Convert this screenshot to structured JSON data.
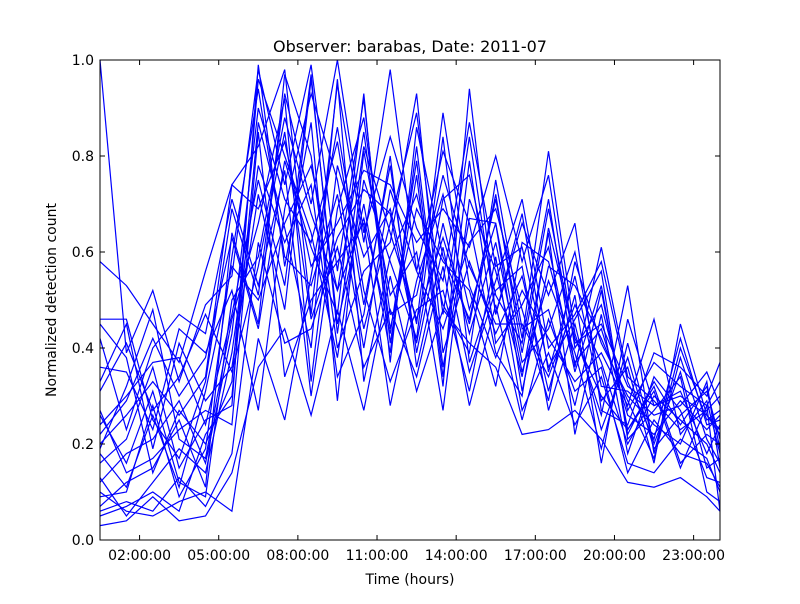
{
  "chart_data": {
    "type": "line",
    "title": "Observer: barabas, Date: 2011-07",
    "xlabel": "Time (hours)",
    "ylabel": "Normalized detection count",
    "xlim": [
      0.5,
      24
    ],
    "ylim": [
      0,
      1
    ],
    "x_ticks": [
      2,
      5,
      8,
      11,
      14,
      17,
      20,
      23
    ],
    "x_tick_labels": [
      "02:00:00",
      "05:00:00",
      "08:00:00",
      "11:00:00",
      "14:00:00",
      "17:00:00",
      "20:00:00",
      "23:00:00"
    ],
    "y_ticks": [
      0,
      0.2,
      0.4,
      0.6,
      0.8,
      1.0
    ],
    "y_tick_labels": [
      "0.0",
      "0.2",
      "0.4",
      "0.6",
      "0.8",
      "1.0"
    ],
    "grid": false,
    "legend": "none",
    "line_color": "#0000ff",
    "x": [
      0.5,
      1.5,
      2.5,
      3.5,
      4.5,
      5.5,
      6.5,
      7.5,
      8.5,
      9.5,
      10.5,
      11.5,
      12.5,
      13.5,
      14.5,
      15.5,
      16.5,
      17.5,
      18.5,
      19.5,
      20.5,
      21.5,
      22.5,
      23.5,
      24
    ],
    "series": [
      {
        "values": [
          1.0,
          0.39,
          0.52,
          0.33,
          0.49,
          0.55,
          0.98,
          0.74,
          0.99,
          0.56,
          0.92,
          0.41,
          0.76,
          0.32,
          0.94,
          0.47,
          0.68,
          0.35,
          0.55,
          0.29,
          0.36,
          0.16,
          0.45,
          0.26,
          0.22
        ]
      },
      {
        "values": [
          0.58,
          0.53,
          0.45,
          0.37,
          0.56,
          0.74,
          0.82,
          0.98,
          0.47,
          0.95,
          0.62,
          0.98,
          0.56,
          0.81,
          0.66,
          0.39,
          0.3,
          0.65,
          0.42,
          0.3,
          0.23,
          0.31,
          0.15,
          0.28,
          0.06
        ]
      },
      {
        "values": [
          0.46,
          0.46,
          0.25,
          0.17,
          0.33,
          0.69,
          0.51,
          0.93,
          0.7,
          1.0,
          0.64,
          0.84,
          0.65,
          0.54,
          0.87,
          0.57,
          0.61,
          0.36,
          0.46,
          0.56,
          0.21,
          0.27,
          0.34,
          0.1,
          0.08
        ]
      },
      {
        "values": [
          0.31,
          0.41,
          0.27,
          0.34,
          0.47,
          0.35,
          0.57,
          0.85,
          0.46,
          0.63,
          0.73,
          0.68,
          0.41,
          0.71,
          0.76,
          0.51,
          0.41,
          0.71,
          0.36,
          0.61,
          0.34,
          0.29,
          0.23,
          0.27,
          0.3
        ]
      },
      {
        "values": [
          0.22,
          0.29,
          0.42,
          0.3,
          0.38,
          0.63,
          0.44,
          0.79,
          0.61,
          0.47,
          0.93,
          0.37,
          0.86,
          0.59,
          0.46,
          0.71,
          0.42,
          0.81,
          0.43,
          0.26,
          0.53,
          0.18,
          0.4,
          0.25,
          0.27
        ]
      },
      {
        "values": [
          0.19,
          0.32,
          0.48,
          0.21,
          0.17,
          0.46,
          0.66,
          0.92,
          0.33,
          0.78,
          0.59,
          0.69,
          0.45,
          0.89,
          0.53,
          0.38,
          0.52,
          0.42,
          0.33,
          0.39,
          0.28,
          0.46,
          0.22,
          0.29,
          0.18
        ]
      },
      {
        "values": [
          0.16,
          0.21,
          0.36,
          0.15,
          0.25,
          0.28,
          0.99,
          0.57,
          0.87,
          0.29,
          0.81,
          0.51,
          0.6,
          0.27,
          0.71,
          0.56,
          0.34,
          0.64,
          0.22,
          0.47,
          0.18,
          0.34,
          0.27,
          0.13,
          0.12
        ]
      },
      {
        "values": [
          0.12,
          0.18,
          0.21,
          0.29,
          0.16,
          0.43,
          0.9,
          0.71,
          0.62,
          0.83,
          0.49,
          0.78,
          0.39,
          0.66,
          0.43,
          0.62,
          0.35,
          0.54,
          0.39,
          0.19,
          0.41,
          0.2,
          0.35,
          0.15,
          0.17
        ]
      },
      {
        "values": [
          0.09,
          0.1,
          0.28,
          0.09,
          0.19,
          0.59,
          0.94,
          0.59,
          0.53,
          0.72,
          0.4,
          0.73,
          0.56,
          0.44,
          0.62,
          0.69,
          0.48,
          0.29,
          0.58,
          0.41,
          0.3,
          0.24,
          0.2,
          0.33,
          0.15
        ]
      },
      {
        "values": [
          0.07,
          0.12,
          0.15,
          0.25,
          0.11,
          0.64,
          0.45,
          0.97,
          0.8,
          0.4,
          0.56,
          0.62,
          0.93,
          0.39,
          0.58,
          0.43,
          0.55,
          0.31,
          0.51,
          0.16,
          0.46,
          0.28,
          0.31,
          0.18,
          0.24
        ]
      },
      {
        "values": [
          0.05,
          0.07,
          0.1,
          0.06,
          0.22,
          0.3,
          0.87,
          0.65,
          0.4,
          0.96,
          0.33,
          0.59,
          0.72,
          0.49,
          0.39,
          0.75,
          0.44,
          0.48,
          0.28,
          0.52,
          0.23,
          0.32,
          0.16,
          0.22,
          0.2
        ]
      },
      {
        "values": [
          0.26,
          0.16,
          0.31,
          0.12,
          0.09,
          0.5,
          0.59,
          0.88,
          0.68,
          0.52,
          0.85,
          0.44,
          0.69,
          0.58,
          0.52,
          0.32,
          0.62,
          0.58,
          0.37,
          0.44,
          0.26,
          0.22,
          0.29,
          0.23,
          0.26
        ]
      },
      {
        "values": [
          0.33,
          0.45,
          0.19,
          0.41,
          0.29,
          0.36,
          0.72,
          0.48,
          0.96,
          0.45,
          0.7,
          0.39,
          0.82,
          0.36,
          0.67,
          0.66,
          0.37,
          0.44,
          0.6,
          0.32,
          0.31,
          0.26,
          0.28,
          0.35,
          0.28
        ]
      },
      {
        "values": [
          0.42,
          0.23,
          0.4,
          0.47,
          0.43,
          0.71,
          0.53,
          0.77,
          0.3,
          0.69,
          0.88,
          0.47,
          0.51,
          0.76,
          0.57,
          0.45,
          0.45,
          0.34,
          0.49,
          0.37,
          0.2,
          0.3,
          0.25,
          0.2,
          0.14
        ]
      },
      {
        "values": [
          0.13,
          0.05,
          0.12,
          0.19,
          0.14,
          0.39,
          0.78,
          0.62,
          0.74,
          0.34,
          0.47,
          0.8,
          0.36,
          0.61,
          0.35,
          0.52,
          0.57,
          0.27,
          0.45,
          0.23,
          0.38,
          0.19,
          0.26,
          0.31,
          0.21
        ]
      },
      {
        "values": [
          0.1,
          0.06,
          0.05,
          0.08,
          0.1,
          0.06,
          0.42,
          0.25,
          0.55,
          0.86,
          0.52,
          0.33,
          0.48,
          0.52,
          0.31,
          0.59,
          0.27,
          0.39,
          0.24,
          0.34,
          0.16,
          0.14,
          0.21,
          0.17,
          0.1
        ]
      },
      {
        "values": [
          0.03,
          0.04,
          0.09,
          0.04,
          0.05,
          0.14,
          0.36,
          0.44,
          0.26,
          0.48,
          0.27,
          0.55,
          0.31,
          0.48,
          0.41,
          0.36,
          0.22,
          0.23,
          0.27,
          0.21,
          0.12,
          0.11,
          0.13,
          0.09,
          0.06
        ]
      },
      {
        "values": [
          0.2,
          0.26,
          0.33,
          0.26,
          0.34,
          0.74,
          0.69,
          0.83,
          0.57,
          0.66,
          0.77,
          0.74,
          0.62,
          0.69,
          0.61,
          0.8,
          0.58,
          0.76,
          0.4,
          0.49,
          0.27,
          0.37,
          0.32,
          0.28,
          0.33
        ]
      },
      {
        "values": [
          0.36,
          0.35,
          0.23,
          0.44,
          0.39,
          0.52,
          0.27,
          0.69,
          0.93,
          0.75,
          0.44,
          0.66,
          0.89,
          0.47,
          0.84,
          0.47,
          0.66,
          0.51,
          0.66,
          0.27,
          0.24,
          0.39,
          0.36,
          0.3,
          0.37
        ]
      },
      {
        "values": [
          0.27,
          0.14,
          0.17,
          0.23,
          0.27,
          0.24,
          0.85,
          0.34,
          0.5,
          0.58,
          0.66,
          0.28,
          0.54,
          0.72,
          0.48,
          0.66,
          0.31,
          0.57,
          0.53,
          0.42,
          0.29,
          0.17,
          0.38,
          0.21,
          0.16
        ]
      },
      {
        "values": [
          0.06,
          0.08,
          0.06,
          0.13,
          0.07,
          0.18,
          0.62,
          0.41,
          0.44,
          0.61,
          0.36,
          0.48,
          0.34,
          0.57,
          0.28,
          0.49,
          0.25,
          0.46,
          0.31,
          0.36,
          0.14,
          0.25,
          0.18,
          0.16,
          0.11
        ]
      },
      {
        "values": [
          0.45,
          0.38,
          0.14,
          0.27,
          0.2,
          0.33,
          0.96,
          0.8,
          0.64,
          0.38,
          0.75,
          0.58,
          0.42,
          0.84,
          0.37,
          0.54,
          0.71,
          0.4,
          0.47,
          0.58,
          0.33,
          0.21,
          0.42,
          0.24,
          0.25
        ]
      },
      {
        "values": [
          0.18,
          0.11,
          0.26,
          0.11,
          0.31,
          0.57,
          0.5,
          0.66,
          0.78,
          0.52,
          0.67,
          0.43,
          0.79,
          0.34,
          0.79,
          0.41,
          0.49,
          0.61,
          0.35,
          0.53,
          0.22,
          0.33,
          0.24,
          0.32,
          0.19
        ]
      },
      {
        "values": [
          0.24,
          0.3,
          0.37,
          0.38,
          0.24,
          0.47,
          0.75,
          0.53,
          0.97,
          0.43,
          0.82,
          0.64,
          0.46,
          0.63,
          0.45,
          0.72,
          0.39,
          0.69,
          0.41,
          0.45,
          0.32,
          0.28,
          0.3,
          0.26,
          0.23
        ]
      }
    ]
  }
}
